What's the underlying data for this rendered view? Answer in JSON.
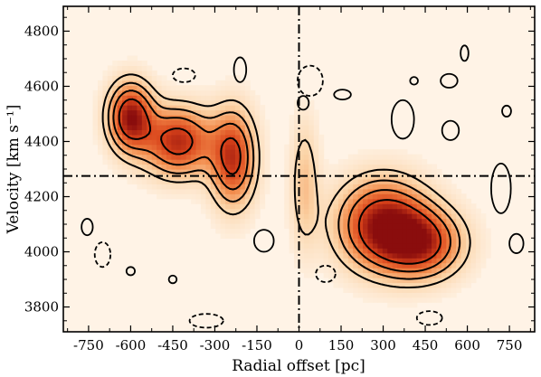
{
  "chart_data": {
    "type": "heatmap",
    "subtype": "position-velocity diagram with contours",
    "xlabel": "Radial offset [pc]",
    "ylabel": "Velocity [km s⁻¹]",
    "xlim": [
      -840,
      840
    ],
    "ylim": [
      3710,
      4890
    ],
    "xticks": [
      -750,
      -600,
      -450,
      -300,
      -150,
      0,
      150,
      300,
      450,
      600,
      750
    ],
    "yticks": [
      3800,
      4000,
      4200,
      4400,
      4600,
      4800
    ],
    "xtick_labels": [
      "-750",
      "-600",
      "-450",
      "-300",
      "-150",
      "0",
      "150",
      "300",
      "450",
      "600",
      "750"
    ],
    "ytick_labels": [
      "3800",
      "4000",
      "4200",
      "4400",
      "4600",
      "4800"
    ],
    "reference_lines": {
      "vertical_x": 0,
      "horizontal_y": 4275,
      "style": "dash-dot"
    },
    "colormap": [
      "#fff3e6",
      "#fbd3a6",
      "#f28a4a",
      "#d9431a",
      "#8a0d0d"
    ],
    "emission_blobs": [
      {
        "x": -600,
        "y": 4490,
        "sx": 55,
        "sy": 85,
        "peak": 1.0
      },
      {
        "x": -430,
        "y": 4400,
        "sx": 85,
        "sy": 85,
        "peak": 0.9
      },
      {
        "x": -235,
        "y": 4340,
        "sx": 55,
        "sy": 120,
        "peak": 0.85
      },
      {
        "x": 300,
        "y": 4100,
        "sx": 110,
        "sy": 110,
        "peak": 1.0
      },
      {
        "x": 440,
        "y": 4030,
        "sx": 100,
        "sy": 85,
        "peak": 0.78
      },
      {
        "x": 20,
        "y": 4250,
        "sx": 35,
        "sy": 160,
        "peak": 0.32
      }
    ],
    "contour_levels": [
      0.2,
      0.36,
      0.55,
      0.78
    ],
    "negative_contours": [
      {
        "x": 40,
        "y": 4620,
        "rx": 45,
        "ry": 55
      },
      {
        "x": -410,
        "y": 4640,
        "rx": 40,
        "ry": 25
      },
      {
        "x": -700,
        "y": 3990,
        "rx": 28,
        "ry": 45
      },
      {
        "x": 95,
        "y": 3920,
        "rx": 35,
        "ry": 30
      },
      {
        "x": 465,
        "y": 3760,
        "rx": 45,
        "ry": 25
      },
      {
        "x": -330,
        "y": 3750,
        "rx": 60,
        "ry": 25
      }
    ],
    "small_positive_contours": [
      {
        "x": 15,
        "y": 4540,
        "rx": 20,
        "ry": 25
      },
      {
        "x": 155,
        "y": 4570,
        "rx": 30,
        "ry": 18
      },
      {
        "x": -210,
        "y": 4660,
        "rx": 22,
        "ry": 45
      },
      {
        "x": -125,
        "y": 4040,
        "rx": 35,
        "ry": 40
      },
      {
        "x": -755,
        "y": 4090,
        "rx": 20,
        "ry": 30
      },
      {
        "x": 535,
        "y": 4620,
        "rx": 30,
        "ry": 25
      },
      {
        "x": 720,
        "y": 4230,
        "rx": 35,
        "ry": 90
      },
      {
        "x": 370,
        "y": 4480,
        "rx": 40,
        "ry": 70
      },
      {
        "x": 540,
        "y": 4440,
        "rx": 30,
        "ry": 35
      },
      {
        "x": 775,
        "y": 4030,
        "rx": 25,
        "ry": 35
      },
      {
        "x": 410,
        "y": 4620,
        "rx": 14,
        "ry": 14
      },
      {
        "x": 740,
        "y": 4510,
        "rx": 16,
        "ry": 20
      },
      {
        "x": 590,
        "y": 4720,
        "rx": 14,
        "ry": 28
      },
      {
        "x": -600,
        "y": 3930,
        "rx": 15,
        "ry": 15
      },
      {
        "x": -450,
        "y": 3900,
        "rx": 14,
        "ry": 14
      }
    ]
  }
}
